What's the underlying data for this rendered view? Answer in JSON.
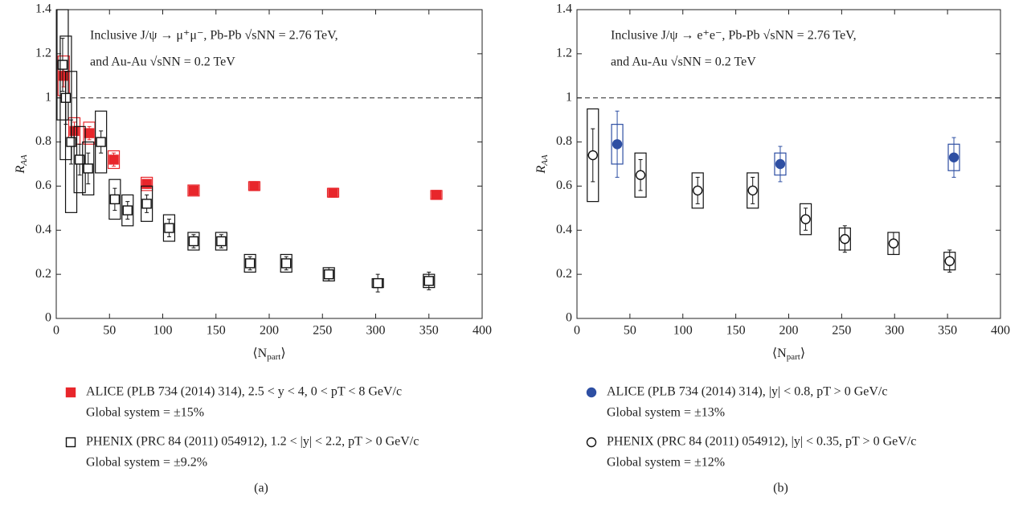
{
  "chart_data": [
    {
      "type": "scatter",
      "caption": "(a)",
      "annotation": [
        "Inclusive J/ψ → μ⁺μ⁻, Pb-Pb √sNN = 2.76 TeV,",
        "and Au-Au √sNN = 0.2 TeV"
      ],
      "xlabel": {
        "pre": "⟨N",
        "sub": "part",
        "post": "⟩"
      },
      "ylabel": {
        "main": "R",
        "sub": "AA"
      },
      "xlim": [
        0,
        400
      ],
      "xticks": [
        0,
        50,
        100,
        150,
        200,
        250,
        300,
        350,
        400
      ],
      "ylim": [
        0,
        1.4
      ],
      "yticks": [
        0,
        0.2,
        0.4,
        0.6,
        0.8,
        1,
        1.2,
        1.4
      ],
      "reference_line": 1,
      "series": [
        {
          "name": "ALICE (PLB 734 (2014) 314), 2.5 < y < 4, 0 < pT < 8 GeV/c",
          "note": "Global system = ±15%",
          "marker": "square-filled",
          "color": "#e8262b",
          "x": [
            7,
            17,
            31,
            54,
            85,
            129,
            186,
            260,
            357
          ],
          "values": [
            1.1,
            0.85,
            0.84,
            0.72,
            0.61,
            0.58,
            0.6,
            0.57,
            0.56
          ],
          "err": [
            0.05,
            0.04,
            0.03,
            0.03,
            0.02,
            0.02,
            0.02,
            0.02,
            0.02
          ],
          "sys": [
            0.09,
            0.06,
            0.05,
            0.04,
            0.03,
            0.025,
            0.02,
            0.02,
            0.02
          ]
        },
        {
          "name": "PHENIX (PRC 84 (2011) 054912), 1.2 < |y| < 2.2, pT > 0 GeV/c",
          "note": "Global system = ±9.2%",
          "marker": "square-open",
          "color": "#111111",
          "x": [
            6,
            9,
            14,
            22,
            30,
            42,
            55,
            67,
            85,
            106,
            129,
            155,
            182,
            216,
            256,
            302,
            350
          ],
          "values": [
            1.15,
            1.0,
            0.8,
            0.72,
            0.68,
            0.8,
            0.54,
            0.49,
            0.52,
            0.41,
            0.35,
            0.35,
            0.25,
            0.25,
            0.2,
            0.16,
            0.17
          ],
          "err": [
            0.12,
            0.12,
            0.1,
            0.07,
            0.07,
            0.05,
            0.05,
            0.04,
            0.04,
            0.04,
            0.03,
            0.03,
            0.03,
            0.03,
            0.03,
            0.04,
            0.04
          ],
          "sys": [
            0.25,
            0.28,
            0.32,
            0.15,
            0.12,
            0.14,
            0.09,
            0.07,
            0.08,
            0.06,
            0.04,
            0.04,
            0.04,
            0.04,
            0.03,
            0.02,
            0.03
          ]
        }
      ]
    },
    {
      "type": "scatter",
      "caption": "(b)",
      "annotation": [
        "Inclusive J/ψ → e⁺e⁻, Pb-Pb √sNN = 2.76 TeV,",
        "and Au-Au √sNN = 0.2 TeV"
      ],
      "xlabel": {
        "pre": "⟨N",
        "sub": "part",
        "post": "⟩"
      },
      "ylabel": {
        "main": "R",
        "sub": "AA"
      },
      "xlim": [
        0,
        400
      ],
      "xticks": [
        0,
        50,
        100,
        150,
        200,
        250,
        300,
        350,
        400
      ],
      "ylim": [
        0,
        1.4
      ],
      "yticks": [
        0,
        0.2,
        0.4,
        0.6,
        0.8,
        1,
        1.2,
        1.4
      ],
      "reference_line": 1,
      "series": [
        {
          "name": "ALICE (PLB 734 (2014) 314), |y| < 0.8, pT > 0 GeV/c",
          "note": "Global system = ±13%",
          "marker": "circle-filled",
          "color": "#2e4fa3",
          "x": [
            38,
            192,
            356
          ],
          "values": [
            0.79,
            0.7,
            0.73
          ],
          "err": [
            0.15,
            0.08,
            0.09
          ],
          "sys": [
            0.09,
            0.05,
            0.06
          ]
        },
        {
          "name": "PHENIX (PRC 84 (2011) 054912), |y| < 0.35, pT > 0 GeV/c",
          "note": "Global system = ±12%",
          "marker": "circle-open",
          "color": "#111111",
          "x": [
            15,
            60,
            114,
            166,
            216,
            253,
            299,
            352
          ],
          "values": [
            0.74,
            0.65,
            0.58,
            0.58,
            0.45,
            0.36,
            0.34,
            0.26
          ],
          "err": [
            0.12,
            0.07,
            0.06,
            0.06,
            0.05,
            0.06,
            0.05,
            0.05
          ],
          "sys": [
            0.21,
            0.1,
            0.08,
            0.08,
            0.07,
            0.05,
            0.05,
            0.04
          ]
        }
      ]
    }
  ]
}
